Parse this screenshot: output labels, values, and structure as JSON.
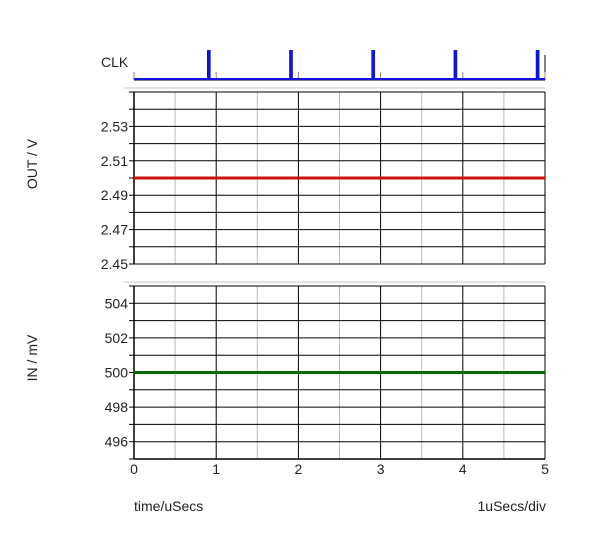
{
  "chart_data": [
    {
      "type": "line",
      "title": "",
      "ylabel": "CLK",
      "xlim": [
        0,
        5
      ],
      "ylim": [
        0,
        1
      ],
      "series": [
        {
          "color": "#1010e0",
          "pulse_times": [
            0.9,
            1.9,
            2.9,
            3.9,
            4.9
          ],
          "values": [
            0,
            1
          ]
        }
      ]
    },
    {
      "type": "line",
      "ylabel": "OUT / V",
      "xlim": [
        0,
        5
      ],
      "ylim": [
        2.45,
        2.55
      ],
      "yticks": [
        "2.53",
        "2.51",
        "2.49",
        "2.47",
        "2.45"
      ],
      "grid": true,
      "series": [
        {
          "color": "#cc1111",
          "x": [
            0,
            5
          ],
          "values": [
            2.5,
            2.5
          ]
        }
      ]
    },
    {
      "type": "line",
      "ylabel": "IN / mV",
      "xlim": [
        0,
        5
      ],
      "ylim": [
        495,
        505
      ],
      "yticks": [
        "504",
        "502",
        "500",
        "498",
        "496"
      ],
      "grid": true,
      "series": [
        {
          "color": "#0a6a0a",
          "x": [
            0,
            5
          ],
          "values": [
            500,
            500
          ]
        }
      ]
    }
  ],
  "xticks": [
    "0",
    "1",
    "2",
    "3",
    "4",
    "5"
  ],
  "xaxis": {
    "title": "time/uSecs",
    "scale": "1uSecs/div"
  }
}
